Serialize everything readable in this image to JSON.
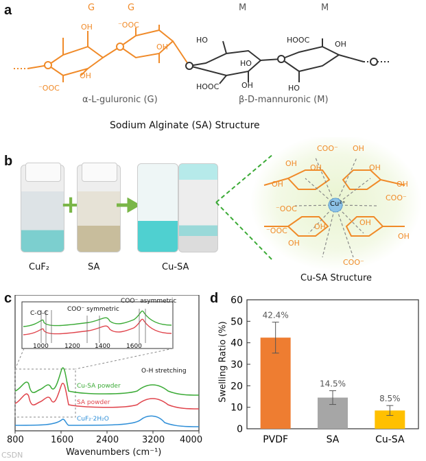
{
  "panels": {
    "a": "a",
    "b": "b",
    "c": "c",
    "d": "d"
  },
  "panel_a": {
    "units": [
      "G",
      "G",
      "M",
      "M"
    ],
    "groups": {
      "oh": "OH",
      "cooh_neg": "⁻OOC",
      "cooh_neg2": "⁻OOC",
      "ho": "HO",
      "hooc": "HOOC",
      "hooc2": "HOOC",
      "oh2": "OH",
      "oh3": "OH",
      "ho2": "HO",
      "oh4": "OH",
      "ho3": "HO",
      "oh5": "OH"
    },
    "caption_g": "α-L-guluronic (G)",
    "caption_m": "β-D-mannuronic (M)",
    "title": "Sodium Alginate (SA) Structure"
  },
  "panel_b": {
    "labels": [
      "CuF₂",
      "SA",
      "Cu-SA"
    ],
    "plus": "+",
    "structure_title": "Cu-SA Structure",
    "cu_label": "Cu²⁺",
    "groups": [
      "COO⁻",
      "OH",
      "OH",
      "OH",
      "OH",
      "OH",
      "OH",
      "COO⁻",
      "⁻OOC",
      "OH",
      "OH",
      "OH",
      "OH",
      "⁻OOC",
      "COO⁻"
    ]
  },
  "panel_c": {
    "xlabel": "Wavenumbers (cm⁻¹)",
    "xticks": [
      "800",
      "1600",
      "2400",
      "3200",
      "4000"
    ],
    "series": [
      "Cu-SA powder",
      "SA powder",
      "CuF₂·2H₂O"
    ],
    "series_colors": [
      "#3aaa35",
      "#e0434b",
      "#2f8fd8"
    ],
    "annotation": "O-H stretching",
    "inset": {
      "labels": [
        "C-O-C",
        "COO⁻ symmetric",
        "COO⁻ asymmetric"
      ],
      "xticks": [
        "1000",
        "1200",
        "1400",
        "1600"
      ]
    }
  },
  "chart_data": {
    "type": "bar",
    "categories": [
      "PVDF",
      "SA",
      "Cu-SA"
    ],
    "values": [
      42.4,
      14.5,
      8.5
    ],
    "errors": [
      7.2,
      3.2,
      2.3
    ],
    "data_labels": [
      "42.4%",
      "14.5%",
      "8.5%"
    ],
    "colors": [
      "#ee7d31",
      "#a6a6a6",
      "#ffc000"
    ],
    "xlabel": "",
    "ylabel": "Swelling Ratio (%)",
    "ylim": [
      0,
      60
    ],
    "yticks": [
      "0",
      "10",
      "20",
      "30",
      "40",
      "50",
      "60"
    ]
  },
  "watermark": "CSDN"
}
